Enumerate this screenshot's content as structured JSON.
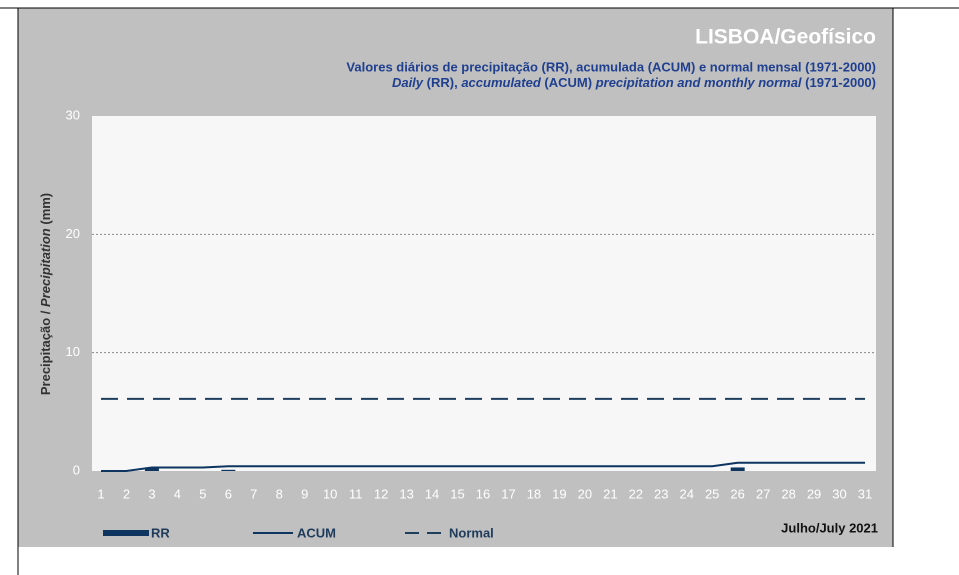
{
  "chart_data": {
    "type": "bar",
    "title": "LISBOA/Geofísico",
    "subtitle": "Valores diários de precipitação (RR), acumulada (ACUM) e normal mensal (1971-2000)",
    "subtitle_en": [
      "Daily",
      " (RR), ",
      "accumulated",
      " (ACUM) ",
      "precipitation and monthly normal",
      " (1971-2000)"
    ],
    "y_label": [
      "Precipitação / ",
      "Precipitation",
      "  (mm)"
    ],
    "period": "Julho/July 2021",
    "categories": [
      "1",
      "2",
      "3",
      "4",
      "5",
      "6",
      "7",
      "8",
      "9",
      "10",
      "11",
      "12",
      "13",
      "14",
      "15",
      "16",
      "17",
      "18",
      "19",
      "20",
      "21",
      "22",
      "23",
      "24",
      "25",
      "26",
      "27",
      "28",
      "29",
      "30",
      "31"
    ],
    "series": [
      {
        "name": "RR",
        "color": "#0d3560",
        "values": [
          0,
          0,
          0.3,
          0,
          0,
          0.1,
          0,
          0,
          0,
          0,
          0,
          0,
          0,
          0,
          0,
          0,
          0,
          0,
          0,
          0,
          0,
          0,
          0,
          0,
          0,
          0.3,
          0,
          0,
          0,
          0,
          0
        ]
      },
      {
        "name": "ACUM",
        "color": "#0d3560",
        "values": [
          0,
          0,
          0.3,
          0.3,
          0.3,
          0.4,
          0.4,
          0.4,
          0.4,
          0.4,
          0.4,
          0.4,
          0.4,
          0.4,
          0.4,
          0.4,
          0.4,
          0.4,
          0.4,
          0.4,
          0.4,
          0.4,
          0.4,
          0.4,
          0.4,
          0.7,
          0.7,
          0.7,
          0.7,
          0.7,
          0.7
        ]
      },
      {
        "name": "Normal",
        "color": "#1f3f5f",
        "values": [
          6.1,
          6.1,
          6.1,
          6.1,
          6.1,
          6.1,
          6.1,
          6.1,
          6.1,
          6.1,
          6.1,
          6.1,
          6.1,
          6.1,
          6.1,
          6.1,
          6.1,
          6.1,
          6.1,
          6.1,
          6.1,
          6.1,
          6.1,
          6.1,
          6.1,
          6.1,
          6.1,
          6.1,
          6.1,
          6.1,
          6.1
        ]
      }
    ],
    "ylim": [
      0,
      30
    ],
    "yticks": [
      0,
      10,
      20,
      30
    ],
    "grid": true
  }
}
